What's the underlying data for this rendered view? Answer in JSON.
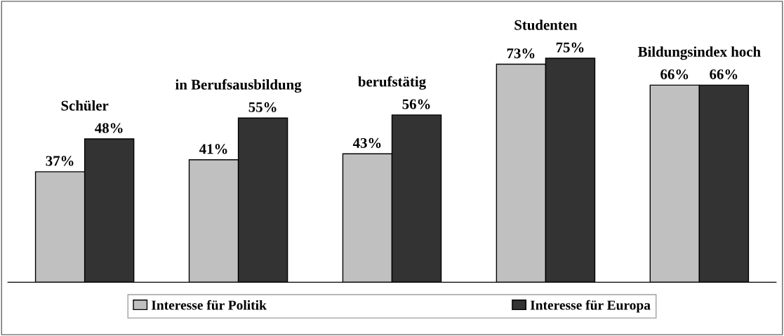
{
  "chart_data": {
    "type": "bar",
    "categories": [
      "Schüler",
      "in Berufsausbildung",
      "berufstätig",
      "Studenten",
      "Bildungsindex hoch"
    ],
    "series": [
      {
        "name": "Interesse für Politik",
        "color": "#c0c0c0",
        "values": [
          37,
          41,
          43,
          73,
          66
        ],
        "value_labels": [
          "37%",
          "41%",
          "43%",
          "73%",
          "66%"
        ]
      },
      {
        "name": "Interesse für Europa",
        "color": "#333333",
        "values": [
          48,
          55,
          56,
          75,
          66
        ],
        "value_labels": [
          "48%",
          "55%",
          "56%",
          "75%",
          "66%"
        ]
      }
    ],
    "tick_labels": false,
    "legend": "bottom"
  }
}
